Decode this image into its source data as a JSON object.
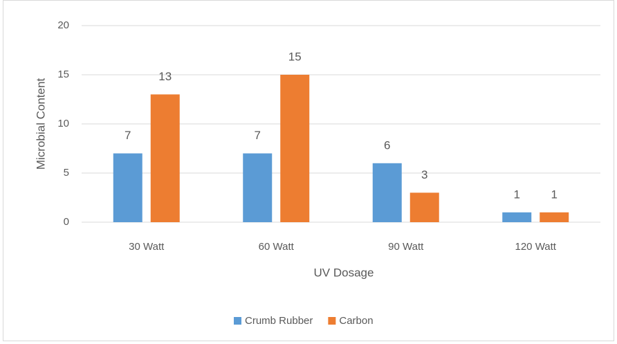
{
  "chart_data": {
    "type": "bar",
    "categories": [
      "30 Watt",
      "60 Watt",
      "90 Watt",
      "120 Watt"
    ],
    "series": [
      {
        "name": "Crumb Rubber",
        "color": "#5b9bd5",
        "values": [
          7,
          7,
          6,
          1
        ]
      },
      {
        "name": "Carbon",
        "color": "#ed7d31",
        "values": [
          13,
          15,
          3,
          1
        ]
      }
    ],
    "x_label": "UV Dosage",
    "y_label": "Microbial Content",
    "ylim": [
      0,
      20
    ],
    "yticks": [
      0,
      5,
      10,
      15,
      20
    ],
    "grid": true,
    "legend": "bottom"
  }
}
